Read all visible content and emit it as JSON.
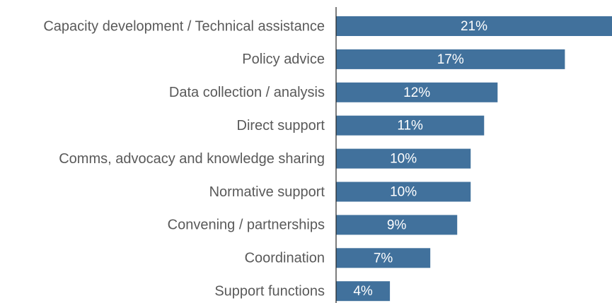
{
  "chart_data": {
    "type": "bar",
    "orientation": "horizontal",
    "categories": [
      "Capacity development / Technical assistance",
      "Policy advice",
      "Data collection / analysis",
      "Direct support",
      "Comms, advocacy and knowledge sharing",
      "Normative support",
      "Convening / partnerships",
      "Coordination",
      "Support functions"
    ],
    "values": [
      21,
      17,
      12,
      11,
      10,
      10,
      9,
      7,
      4
    ],
    "value_labels": [
      "21%",
      "17%",
      "12%",
      "11%",
      "10%",
      "10%",
      "9%",
      "7%",
      "4%"
    ],
    "color": "#41719c",
    "xlim": [
      0,
      20.5
    ]
  }
}
